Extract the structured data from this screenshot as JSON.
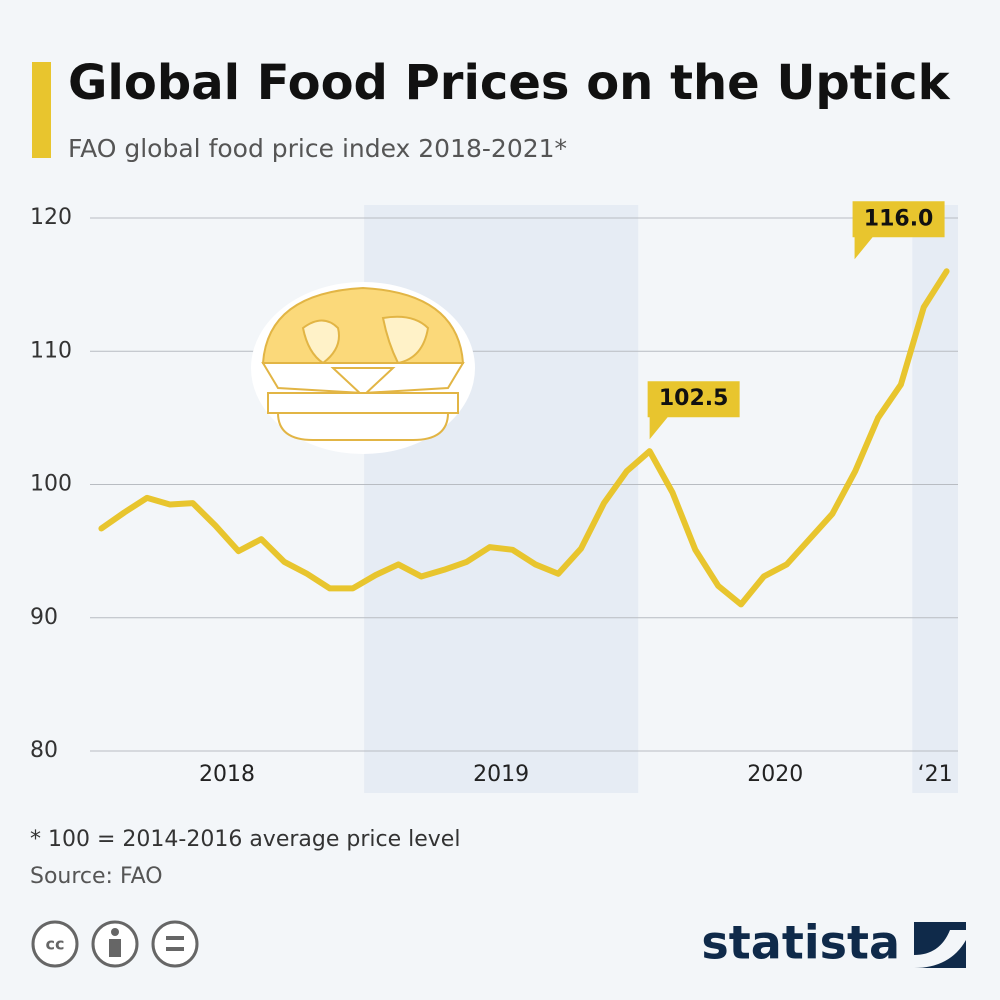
{
  "chart_data": {
    "type": "line",
    "title": "Global Food Prices on the Uptick",
    "subtitle": "FAO global food price index 2018-2021*",
    "categories": [
      null,
      null,
      null,
      null,
      null,
      "2018",
      null,
      null,
      null,
      null,
      null,
      null,
      null,
      null,
      null,
      null,
      null,
      "2019",
      null,
      null,
      null,
      null,
      null,
      null,
      null,
      null,
      null,
      null,
      null,
      "2020",
      null,
      null,
      null,
      null,
      null,
      null,
      "‘21",
      null
    ],
    "series": [
      {
        "name": "FAO food price index",
        "color": "#e8c52e",
        "values": [
          96.7,
          97.9,
          99.0,
          98.5,
          98.6,
          96.9,
          95.0,
          95.9,
          94.2,
          93.3,
          92.2,
          92.2,
          93.2,
          94.0,
          93.1,
          93.6,
          94.2,
          95.3,
          95.1,
          94.0,
          93.3,
          95.2,
          98.6,
          101.0,
          102.5,
          99.4,
          95.1,
          92.4,
          91.0,
          93.1,
          94.0,
          95.9,
          97.8,
          101.0,
          105.0,
          107.5,
          113.3,
          116.0
        ],
        "value_labels": [
          null,
          null,
          null,
          null,
          null,
          null,
          null,
          null,
          null,
          null,
          null,
          null,
          null,
          null,
          null,
          null,
          null,
          null,
          null,
          null,
          null,
          null,
          null,
          null,
          "102.5",
          null,
          null,
          null,
          null,
          null,
          null,
          null,
          null,
          null,
          null,
          null,
          null,
          "116.0"
        ]
      }
    ],
    "ylim": [
      80,
      120
    ],
    "yticks": [
      80,
      90,
      100,
      110,
      120
    ],
    "grid": true,
    "footnote": "* 100 = 2014-2016 average price level",
    "source": "Source: FAO",
    "brand": "statista"
  }
}
